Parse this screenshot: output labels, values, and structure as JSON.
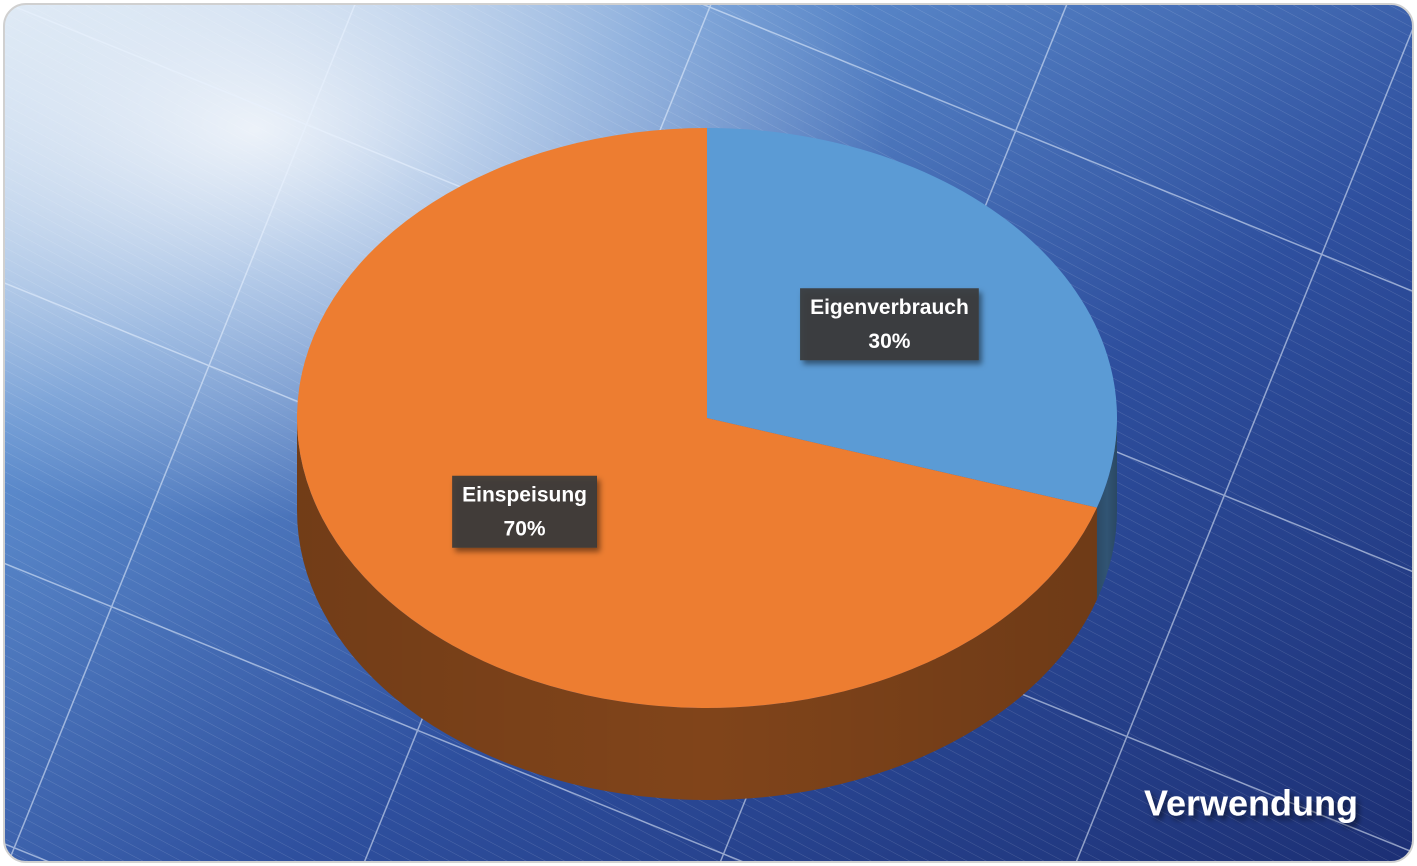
{
  "chart_data": {
    "type": "pie",
    "title": "Verwendung",
    "categories": [
      "Eigenverbrauch",
      "Einspeisung"
    ],
    "values": [
      30,
      70
    ],
    "value_labels": [
      "30%",
      "70%"
    ],
    "colors": [
      "#5b9bd5",
      "#ed7d31"
    ]
  }
}
